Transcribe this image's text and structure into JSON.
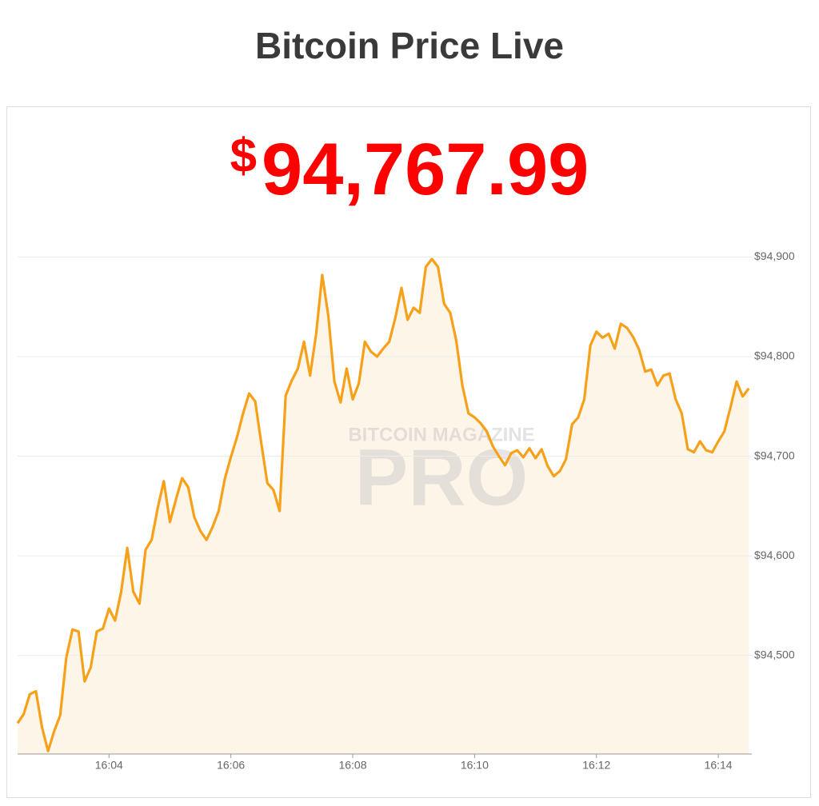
{
  "header": {
    "title": "Bitcoin Price Live"
  },
  "price": {
    "currency": "$",
    "amount": "94,767.99"
  },
  "watermark": {
    "brand": "BITCOIN MAGAZINE",
    "product": "PRO"
  },
  "chart_data": {
    "type": "area",
    "color": "#f7a11a",
    "fill": "#fdf5e8",
    "grid": true,
    "x": [
      2.5,
      2.6,
      2.7,
      2.8,
      2.9,
      3.0,
      3.1,
      3.2,
      3.3,
      3.4,
      3.5,
      3.6,
      3.7,
      3.8,
      3.9,
      4.0,
      4.1,
      4.2,
      4.3,
      4.4,
      4.5,
      4.6,
      4.7,
      4.8,
      4.9,
      5.0,
      5.1,
      5.2,
      5.3,
      5.4,
      5.5,
      5.6,
      5.7,
      5.8,
      5.9,
      6.0,
      6.1,
      6.2,
      6.3,
      6.4,
      6.5,
      6.6,
      6.7,
      6.8,
      6.9,
      7.0,
      7.1,
      7.2,
      7.3,
      7.4,
      7.5,
      7.6,
      7.7,
      7.8,
      7.9,
      8.0,
      8.1,
      8.2,
      8.3,
      8.4,
      8.5,
      8.6,
      8.7,
      8.8,
      8.9,
      9.0,
      9.1,
      9.2,
      9.3,
      9.4,
      9.5,
      9.6,
      9.7,
      9.8,
      9.9,
      10.0,
      10.1,
      10.2,
      10.3,
      10.4,
      10.5,
      10.6,
      10.7,
      10.8,
      10.9,
      11.0,
      11.1,
      11.2,
      11.3,
      11.4,
      11.5,
      11.6,
      11.7,
      11.8,
      11.9,
      12.0,
      12.1,
      12.2,
      12.3,
      12.4,
      12.5,
      12.6,
      12.7,
      12.8,
      12.9,
      13.0,
      13.1,
      13.2,
      13.3,
      13.4,
      13.5,
      13.6,
      13.7,
      13.8,
      13.9,
      14.0,
      14.1,
      14.2,
      14.3,
      14.4,
      14.5
    ],
    "values": [
      94432,
      94441,
      94461,
      94464,
      94428,
      94404,
      94424,
      94440,
      94498,
      94526,
      94524,
      94474,
      94488,
      94524,
      94527,
      94547,
      94535,
      94564,
      94608,
      94564,
      94552,
      94606,
      94616,
      94648,
      94675,
      94634,
      94657,
      94678,
      94669,
      94639,
      94625,
      94616,
      94629,
      94645,
      94677,
      94699,
      94719,
      94743,
      94763,
      94755,
      94713,
      94673,
      94666,
      94645,
      94761,
      94776,
      94788,
      94815,
      94781,
      94823,
      94882,
      94841,
      94775,
      94754,
      94788,
      94757,
      94773,
      94815,
      94805,
      94800,
      94808,
      94815,
      94839,
      94869,
      94837,
      94849,
      94844,
      94890,
      94898,
      94890,
      94853,
      94844,
      94816,
      94771,
      94743,
      94739,
      94733,
      94725,
      94710,
      94700,
      94691,
      94703,
      94706,
      94699,
      94708,
      94698,
      94707,
      94690,
      94680,
      94685,
      94697,
      94732,
      94739,
      94757,
      94811,
      94825,
      94819,
      94823,
      94808,
      94833,
      94829,
      94820,
      94807,
      94785,
      94787,
      94771,
      94781,
      94783,
      94757,
      94743,
      94707,
      94704,
      94715,
      94706,
      94704,
      94715,
      94725,
      94749,
      94775,
      94760,
      94768
    ],
    "xlim": [
      2.5,
      14.55
    ],
    "xticks": [
      {
        "value": 4,
        "label": "16:04"
      },
      {
        "value": 6,
        "label": "16:06"
      },
      {
        "value": 8,
        "label": "16:08"
      },
      {
        "value": 10,
        "label": "16:10"
      },
      {
        "value": 12,
        "label": "16:12"
      },
      {
        "value": 14,
        "label": "16:14"
      }
    ],
    "ylim": [
      94401,
      94918
    ],
    "yticks": [
      {
        "value": 94500,
        "label": "$94,500"
      },
      {
        "value": 94600,
        "label": "$94,600"
      },
      {
        "value": 94700,
        "label": "$94,700"
      },
      {
        "value": 94800,
        "label": "$94,800"
      },
      {
        "value": 94900,
        "label": "$94,900"
      }
    ]
  }
}
